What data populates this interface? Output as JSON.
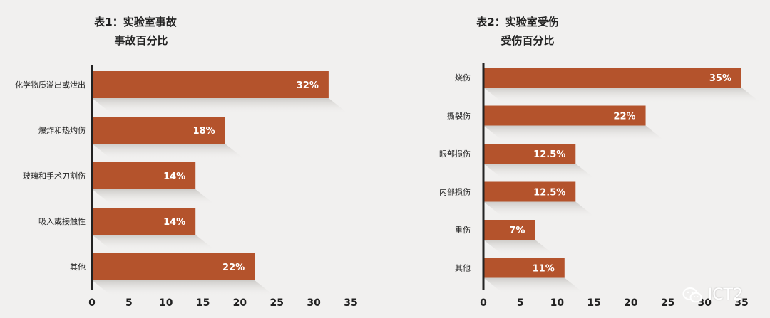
{
  "colors": {
    "bar": "#b4532c",
    "bar_label": "#ffffff",
    "axis": "#222222",
    "text": "#222222",
    "shadow": "#d9d8d6"
  },
  "watermark": {
    "text": "ICT2",
    "icon": "wechat-icon"
  },
  "chart_data": [
    {
      "type": "bar",
      "orientation": "horizontal",
      "title": "表1：实验室事故",
      "subtitle": "事故百分比",
      "categories": [
        "化学物质溢出或泄出",
        "爆炸和热灼伤",
        "玻璃和手术刀割伤",
        "吸入或接触性",
        "其他"
      ],
      "values": [
        32,
        18,
        14,
        14,
        22
      ],
      "value_labels": [
        "32%",
        "18%",
        "14%",
        "14%",
        "22%"
      ],
      "xlim": [
        0,
        35
      ],
      "xticks": [
        "0",
        "5",
        "10",
        "15",
        "20",
        "25",
        "30",
        "35"
      ],
      "grid": false
    },
    {
      "type": "bar",
      "orientation": "horizontal",
      "title": "表2：实验室受伤",
      "subtitle": "受伤百分比",
      "categories": [
        "烧伤",
        "撕裂伤",
        "眼部损伤",
        "内部损伤",
        "重伤",
        "其他"
      ],
      "values": [
        35,
        22,
        12.5,
        12.5,
        7,
        11
      ],
      "value_labels": [
        "35%",
        "22%",
        "12.5%",
        "12.5%",
        "7%",
        "11%"
      ],
      "xlim": [
        0,
        35
      ],
      "xticks": [
        "0",
        "5",
        "10",
        "15",
        "20",
        "25",
        "30",
        "35"
      ],
      "grid": false
    }
  ]
}
